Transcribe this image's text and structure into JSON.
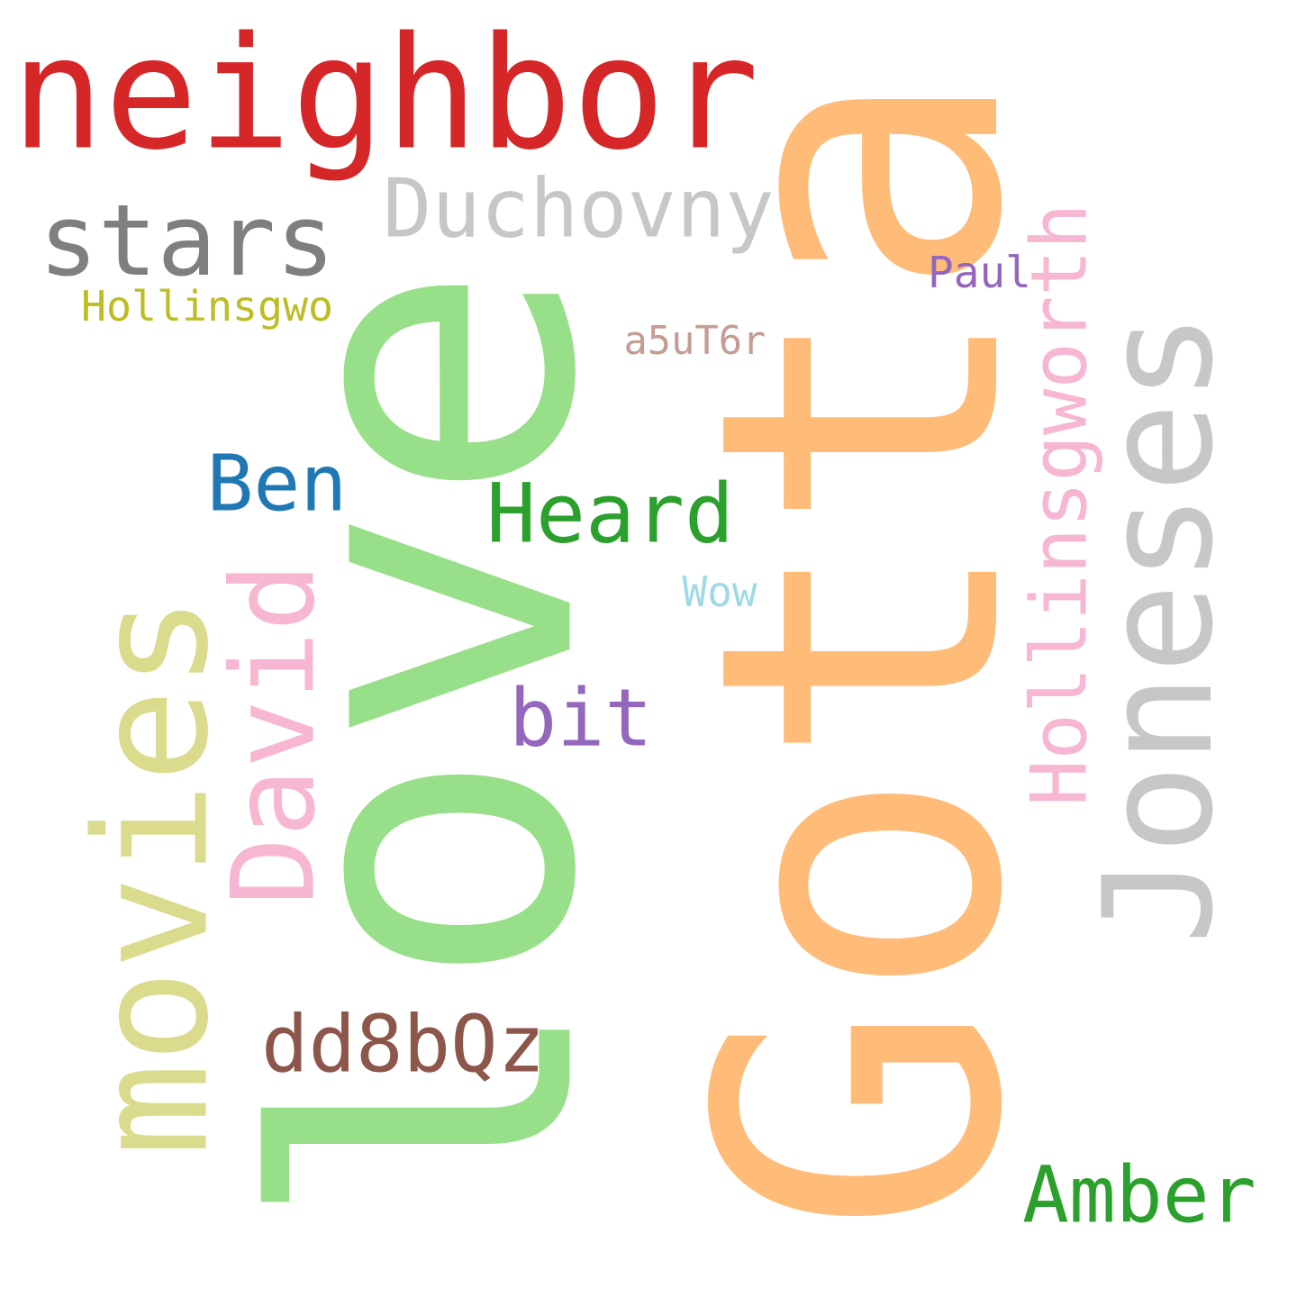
{
  "words": [
    {
      "key": "gotta",
      "text": "Gotta",
      "color": "#ffbb78",
      "orientation": "vertical"
    },
    {
      "key": "love",
      "text": "love",
      "color": "#98df8a",
      "orientation": "vertical"
    },
    {
      "key": "neighbor",
      "text": "neighbor",
      "color": "#d62728",
      "orientation": "horizontal"
    },
    {
      "key": "jones",
      "text": "Joneses",
      "color": "#c7c7c7",
      "orientation": "vertical"
    },
    {
      "key": "movies",
      "text": "movies",
      "color": "#dbdb8d",
      "orientation": "vertical"
    },
    {
      "key": "stars",
      "text": "stars",
      "color": "#7f7f7f",
      "orientation": "horizontal"
    },
    {
      "key": "duchovny",
      "text": "Duchovny",
      "color": "#c7c7c7",
      "orientation": "horizontal"
    },
    {
      "key": "david",
      "text": "David",
      "color": "#f7b6d2",
      "orientation": "vertical"
    },
    {
      "key": "hollingsworth",
      "text": "Hollinsgworth",
      "color": "#f7b6d2",
      "orientation": "vertical"
    },
    {
      "key": "heard",
      "text": "Heard",
      "color": "#2ca02c",
      "orientation": "horizontal"
    },
    {
      "key": "amber",
      "text": "Amber",
      "color": "#2ca02c",
      "orientation": "horizontal"
    },
    {
      "key": "ben",
      "text": "Ben",
      "color": "#1f77b4",
      "orientation": "horizontal"
    },
    {
      "key": "bit",
      "text": "bit",
      "color": "#9467bd",
      "orientation": "horizontal"
    },
    {
      "key": "dd8bqz",
      "text": "dd8bQz",
      "color": "#8c564b",
      "orientation": "horizontal"
    },
    {
      "key": "hollinsgwo",
      "text": "Hollinsgwo",
      "color": "#bcbd22",
      "orientation": "horizontal"
    },
    {
      "key": "paul",
      "text": "Paul",
      "color": "#9467bd",
      "orientation": "horizontal"
    },
    {
      "key": "a5ut6r",
      "text": "a5uT6r",
      "color": "#c49c94",
      "orientation": "horizontal"
    },
    {
      "key": "wow",
      "text": "Wow",
      "color": "#9edae5",
      "orientation": "horizontal"
    }
  ]
}
